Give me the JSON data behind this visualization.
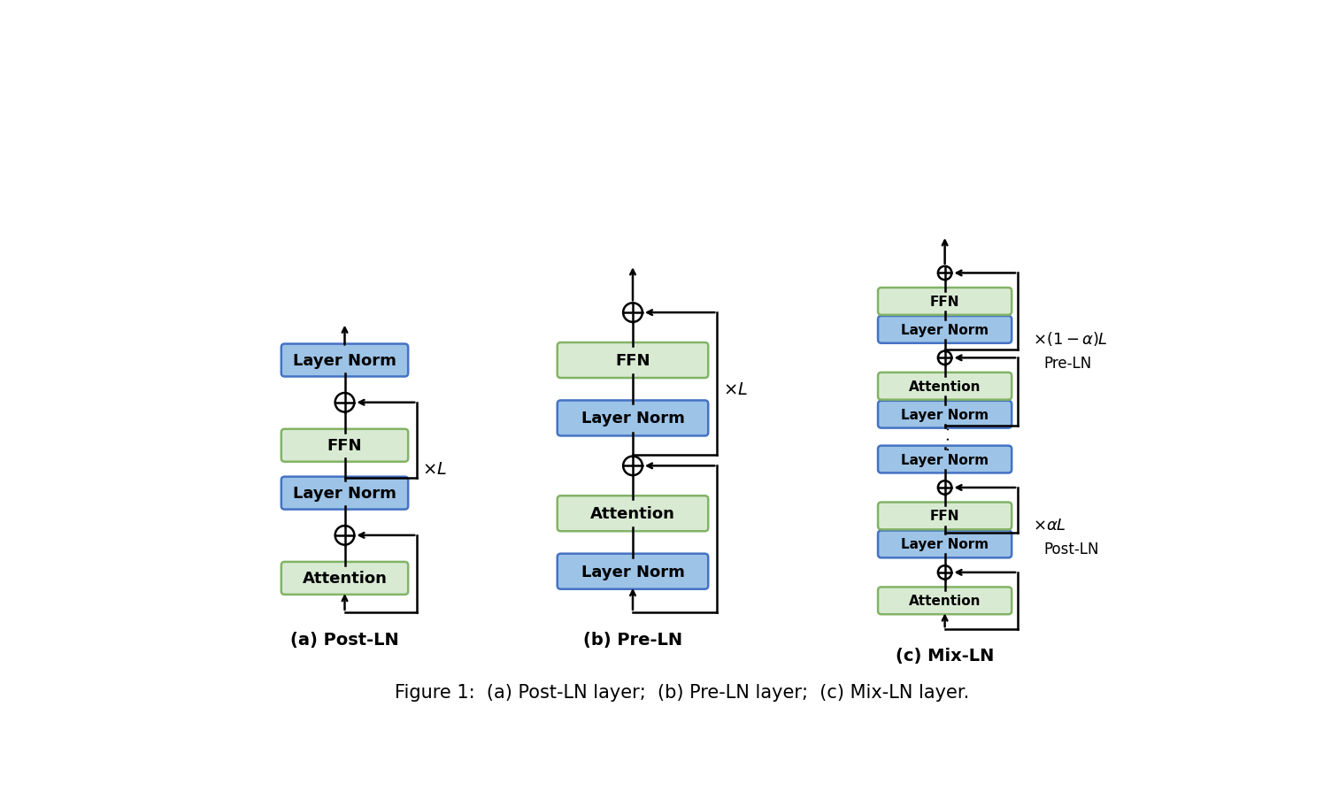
{
  "bg_color": "#ffffff",
  "green_color": "#d9ead3",
  "green_edge": "#82b366",
  "blue_color": "#9dc3e6",
  "blue_edge": "#4472c4",
  "figure_caption": "Figure 1:  (a) Post-LN layer;  (b) Pre-LN layer;  (c) Mix-LN layer.",
  "label_a": "(a) Post-LN",
  "label_b": "(b) Pre-LN",
  "label_c": "(c) Mix-LN"
}
